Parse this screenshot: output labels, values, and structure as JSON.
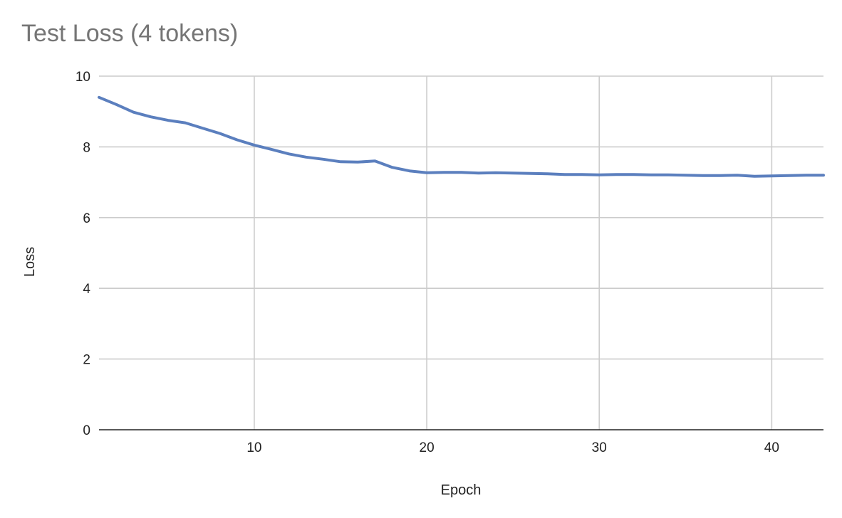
{
  "chart_data": {
    "type": "line",
    "title": "Test Loss (4 tokens)",
    "xlabel": "Epoch",
    "ylabel": "Loss",
    "xlim": [
      1,
      43
    ],
    "ylim": [
      0,
      10
    ],
    "x_ticks": [
      10,
      20,
      30,
      40
    ],
    "y_ticks": [
      0,
      2,
      4,
      6,
      8,
      10
    ],
    "grid": true,
    "legend": "none",
    "series": [
      {
        "color": "#5b7fbe",
        "x": [
          1,
          2,
          3,
          4,
          5,
          6,
          7,
          8,
          9,
          10,
          11,
          12,
          13,
          14,
          15,
          16,
          17,
          18,
          19,
          20,
          21,
          22,
          23,
          24,
          25,
          26,
          27,
          28,
          29,
          30,
          31,
          32,
          33,
          34,
          35,
          36,
          37,
          38,
          39,
          40,
          41,
          42,
          43
        ],
        "y": [
          9.4,
          9.2,
          8.98,
          8.85,
          8.75,
          8.68,
          8.53,
          8.38,
          8.2,
          8.05,
          7.93,
          7.8,
          7.71,
          7.65,
          7.58,
          7.57,
          7.6,
          7.42,
          7.32,
          7.27,
          7.28,
          7.28,
          7.26,
          7.27,
          7.26,
          7.25,
          7.24,
          7.22,
          7.22,
          7.21,
          7.22,
          7.22,
          7.21,
          7.21,
          7.2,
          7.19,
          7.19,
          7.2,
          7.17,
          7.18,
          7.19,
          7.2,
          7.2
        ]
      }
    ]
  }
}
